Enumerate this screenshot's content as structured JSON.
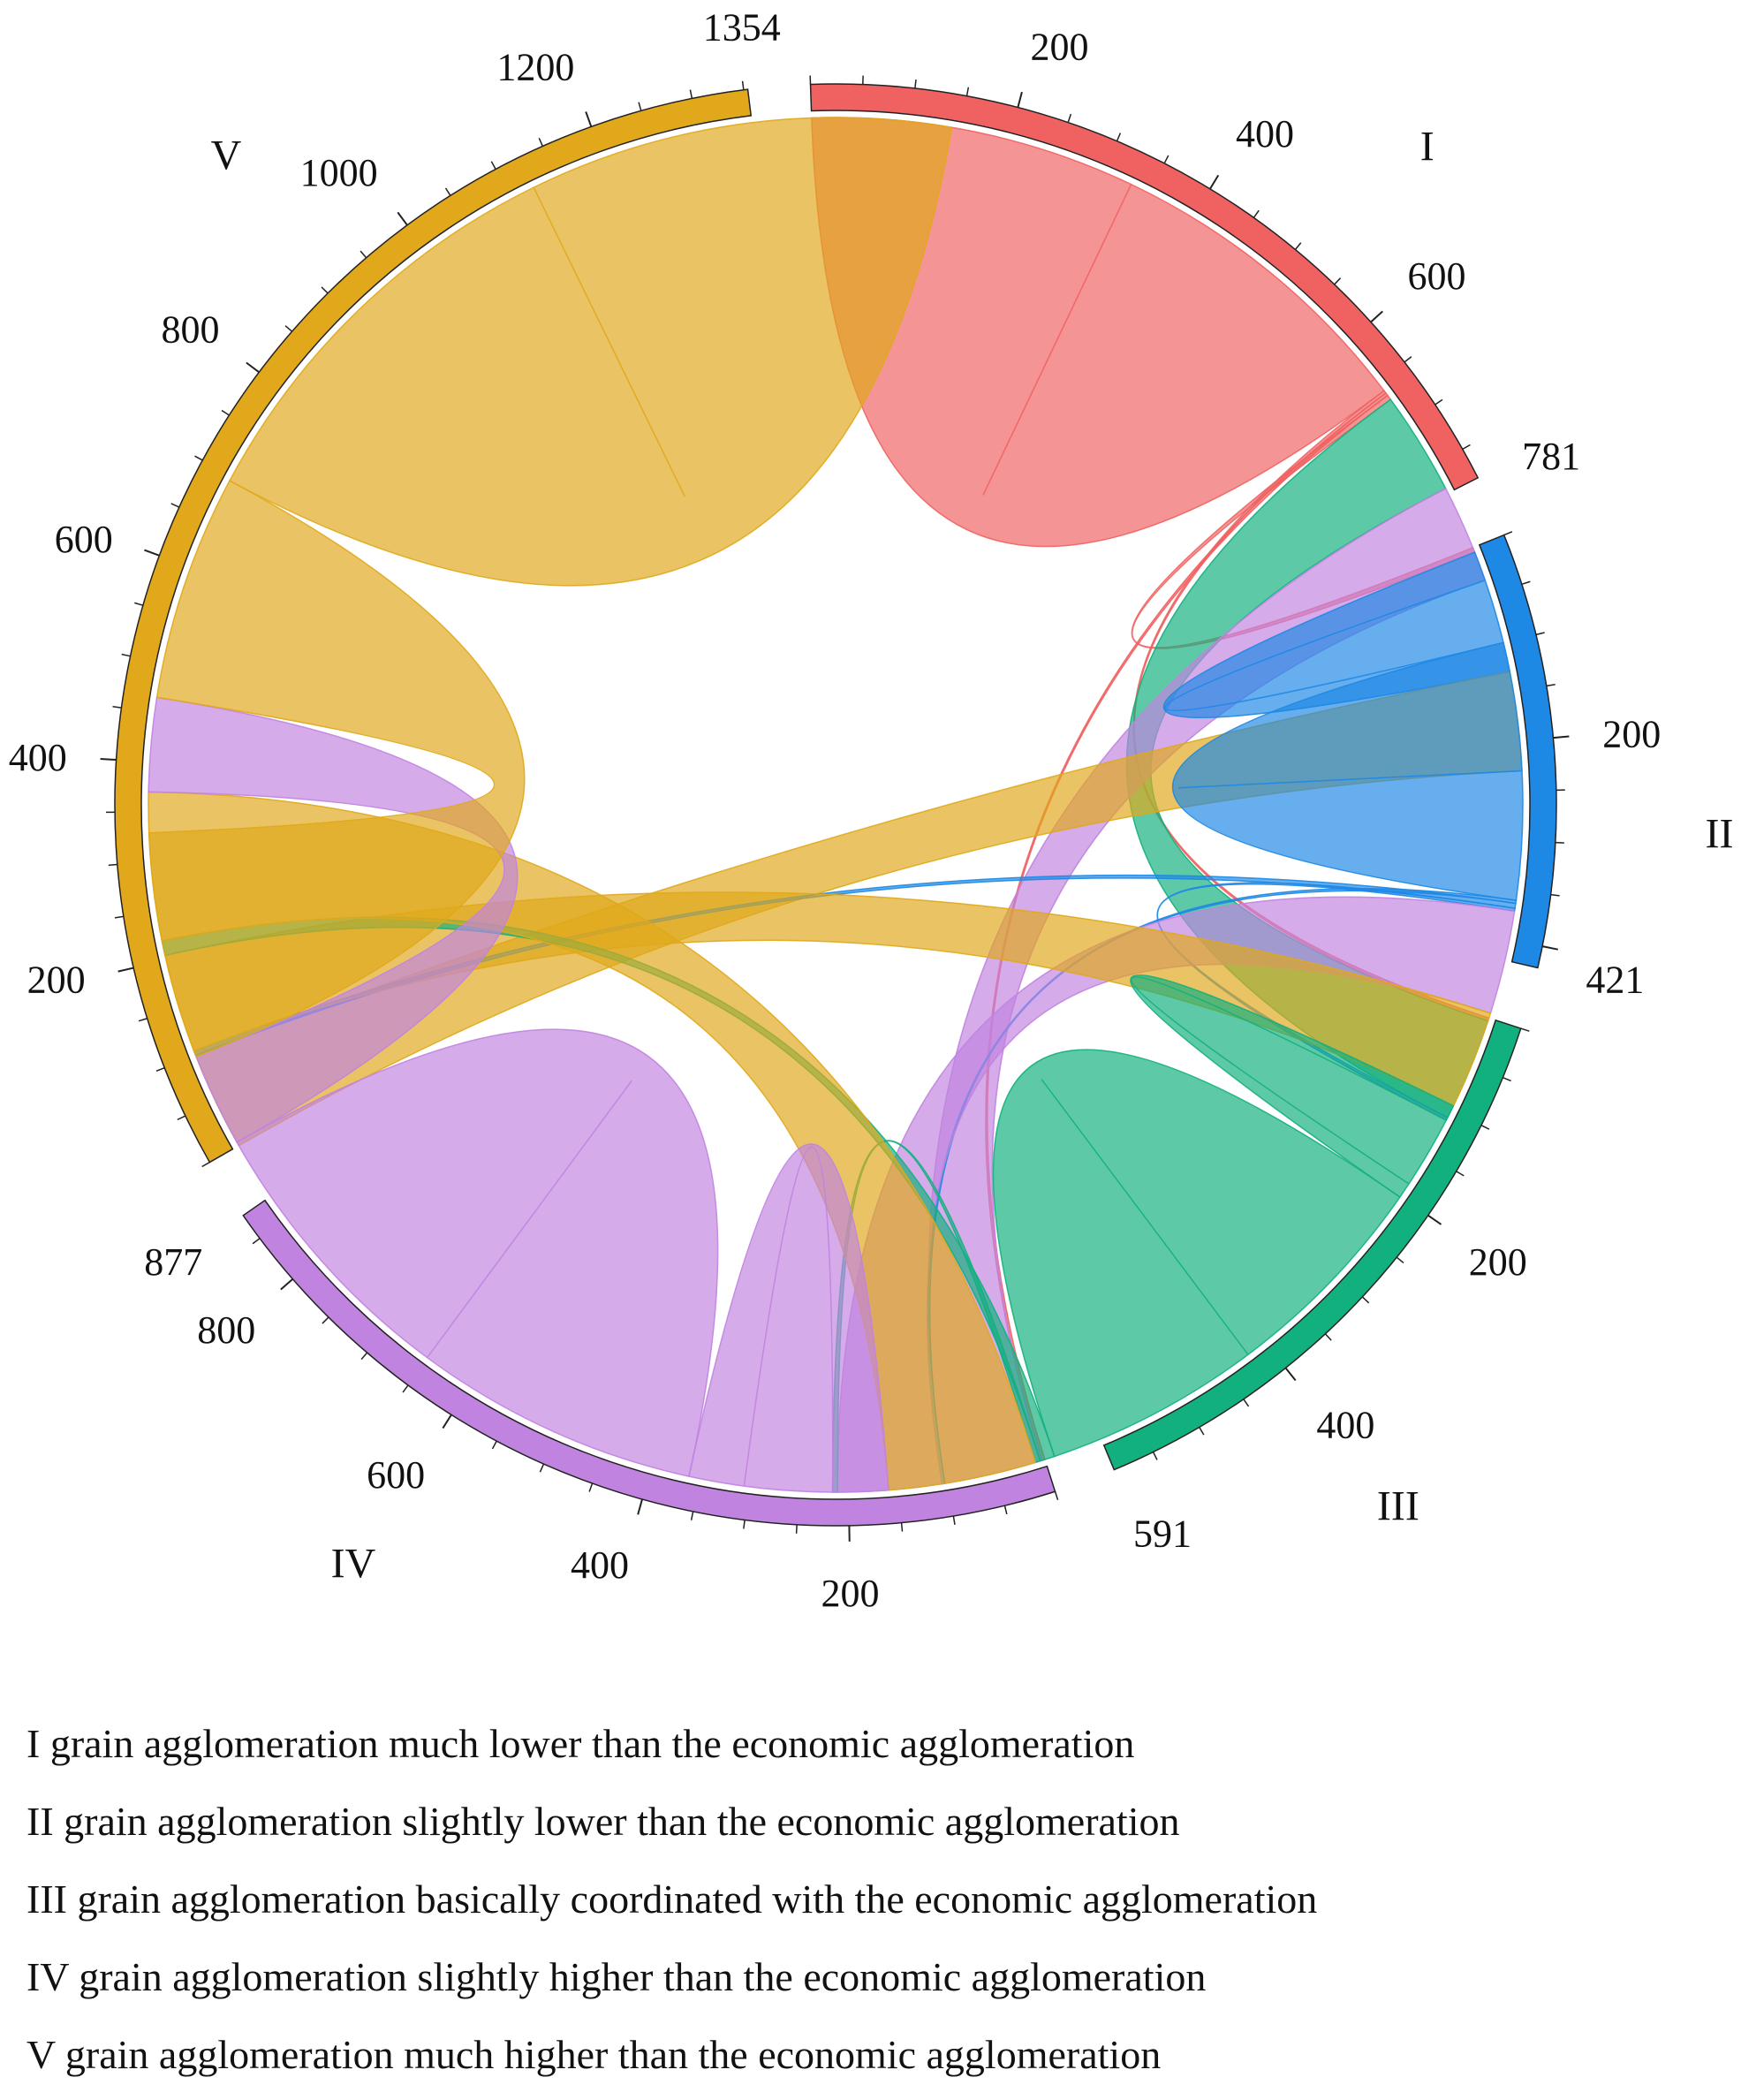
{
  "chart_data": {
    "type": "chord",
    "groups": [
      {
        "id": "I",
        "name": "I",
        "total": 781,
        "color": "#f06262",
        "ticks": [
          200,
          400,
          600
        ],
        "end_label": "781"
      },
      {
        "id": "II",
        "name": "II",
        "total": 421,
        "color": "#1e88e5",
        "ticks": [
          200
        ],
        "end_label": "421"
      },
      {
        "id": "III",
        "name": "III",
        "total": 591,
        "color": "#12b07e",
        "ticks": [
          200,
          400
        ],
        "end_label": "591"
      },
      {
        "id": "IV",
        "name": "IV",
        "total": 877,
        "color": "#c183e0",
        "ticks": [
          200,
          400,
          600,
          800
        ],
        "end_label": "877"
      },
      {
        "id": "V",
        "name": "V",
        "total": 1354,
        "color": "#e0a81a",
        "ticks": [
          200,
          400,
          600,
          800,
          1000,
          1200
        ],
        "end_label": "1354"
      }
    ],
    "flows": [
      {
        "from": "I",
        "to": "I",
        "value": 330
      },
      {
        "from": "I",
        "to": "III",
        "value": 3
      },
      {
        "from": "I",
        "to": "IV",
        "value": 3
      },
      {
        "from": "I",
        "to": "II",
        "value": 5
      },
      {
        "from": "III",
        "to": "I",
        "value": 105
      },
      {
        "from": "IV",
        "to": "I",
        "value": 100
      },
      {
        "from": "II",
        "to": "I",
        "value": 95
      },
      {
        "from": "V",
        "to": "I",
        "value": 100
      },
      {
        "from": "II",
        "to": "II",
        "value": 130
      },
      {
        "from": "II",
        "to": "IV",
        "value": 3
      },
      {
        "from": "II",
        "to": "V",
        "value": 5
      },
      {
        "from": "II",
        "to": "III",
        "value": 3
      },
      {
        "from": "IV",
        "to": "II",
        "value": 105
      },
      {
        "from": "V",
        "to": "II",
        "value": 100
      },
      {
        "from": "III",
        "to": "II",
        "value": 90
      },
      {
        "from": "III",
        "to": "III",
        "value": 220
      },
      {
        "from": "III",
        "to": "V",
        "value": 15
      },
      {
        "from": "III",
        "to": "IV",
        "value": 5
      },
      {
        "from": "V",
        "to": "III",
        "value": 150
      },
      {
        "from": "IV",
        "to": "III",
        "value": 145
      },
      {
        "from": "IV",
        "to": "IV",
        "value": 290
      },
      {
        "from": "IV",
        "to": "V",
        "value": 95
      },
      {
        "from": "V",
        "to": "IV",
        "value": 230
      },
      {
        "from": "V",
        "to": "V",
        "value": 430
      }
    ]
  },
  "legend": [
    "I grain agglomeration much lower than the economic agglomeration",
    "II grain agglomeration slightly lower than the economic agglomeration",
    "III grain agglomeration basically coordinated with the economic agglomeration",
    "IV grain agglomeration slightly higher than the economic agglomeration",
    "V grain agglomeration much higher than the economic agglomeration"
  ]
}
